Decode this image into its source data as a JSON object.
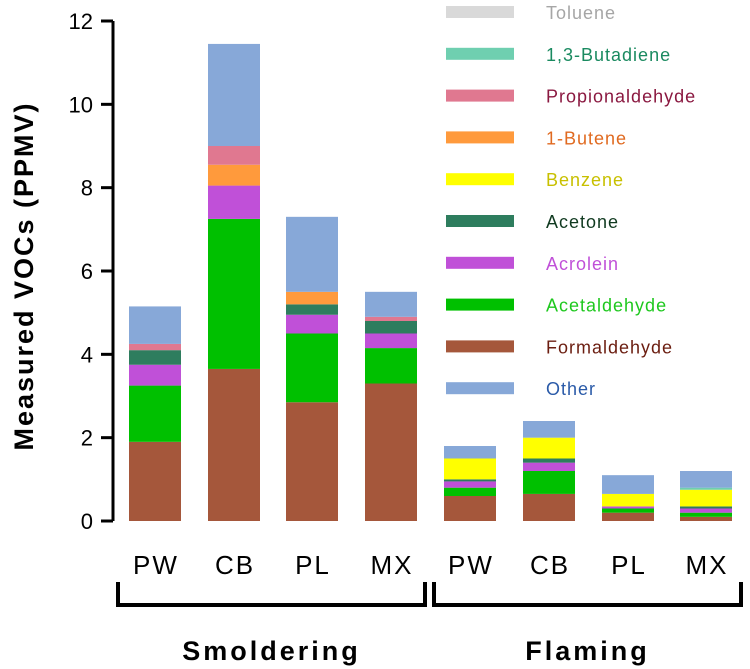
{
  "chart_data": {
    "type": "bar",
    "stacked": true,
    "title": "",
    "xlabel": "",
    "ylabel": "Measured VOCs (PPMV)",
    "ylim": [
      0,
      12
    ],
    "yticks": [
      0,
      2,
      4,
      6,
      8,
      10,
      12
    ],
    "categories": [
      "PW",
      "CB",
      "PL",
      "MX",
      "PW",
      "CB",
      "PL",
      "MX"
    ],
    "groups": [
      {
        "label": "Smoldering",
        "categories": [
          "PW",
          "CB",
          "PL",
          "MX"
        ]
      },
      {
        "label": "Flaming",
        "categories": [
          "PW",
          "CB",
          "PL",
          "MX"
        ]
      }
    ],
    "series": [
      {
        "name": "Formaldehyde",
        "color": "#a5573b",
        "text_color": "#6b1d10",
        "values": [
          1.9,
          3.65,
          2.85,
          3.3,
          0.6,
          0.65,
          0.2,
          0.1
        ]
      },
      {
        "name": "Acetaldehyde",
        "color": "#00c000",
        "text_color": "#1ec81e",
        "values": [
          1.35,
          3.6,
          1.65,
          0.85,
          0.2,
          0.55,
          0.1,
          0.1
        ]
      },
      {
        "name": "Acrolein",
        "color": "#c050d8",
        "text_color": "#c050d8",
        "values": [
          0.5,
          0.8,
          0.45,
          0.35,
          0.15,
          0.2,
          0.05,
          0.1
        ]
      },
      {
        "name": "Acetone",
        "color": "#2e7d5e",
        "text_color": "#103a20",
        "values": [
          0.35,
          0.0,
          0.25,
          0.3,
          0.05,
          0.1,
          0.0,
          0.05
        ]
      },
      {
        "name": "Benzene",
        "color": "#ffff00",
        "text_color": "#c8c000",
        "values": [
          0.0,
          0.0,
          0.0,
          0.0,
          0.5,
          0.5,
          0.3,
          0.4
        ]
      },
      {
        "name": "1-Butene",
        "color": "#ff9a3c",
        "text_color": "#e06a20",
        "values": [
          0.0,
          0.5,
          0.3,
          0.0,
          0.0,
          0.0,
          0.0,
          0.0
        ]
      },
      {
        "name": "Propionaldehyde",
        "color": "#e07890",
        "text_color": "#8a1840",
        "values": [
          0.15,
          0.45,
          0.0,
          0.1,
          0.0,
          0.0,
          0.0,
          0.0
        ]
      },
      {
        "name": "1,3-Butadiene",
        "color": "#6fcfb0",
        "text_color": "#1a8a60",
        "values": [
          0.0,
          0.0,
          0.0,
          0.0,
          0.0,
          0.0,
          0.0,
          0.05
        ]
      },
      {
        "name": "Toluene",
        "color": "#d9d9d9",
        "text_color": "#a6a6a6",
        "values": [
          0.0,
          0.0,
          0.0,
          0.0,
          0.0,
          0.0,
          0.0,
          0.0
        ]
      },
      {
        "name": "Other",
        "color": "#87a8d8",
        "text_color": "#2a5aa8",
        "values": [
          0.9,
          2.45,
          1.8,
          0.6,
          0.3,
          0.4,
          0.45,
          0.4
        ]
      }
    ],
    "legend": {
      "placement": "top-right",
      "order": [
        "Toluene",
        "1,3-Butadiene",
        "Propionaldehyde",
        "1-Butene",
        "Benzene",
        "Acetone",
        "Acrolein",
        "Acetaldehyde",
        "Formaldehyde",
        "Other"
      ]
    }
  }
}
